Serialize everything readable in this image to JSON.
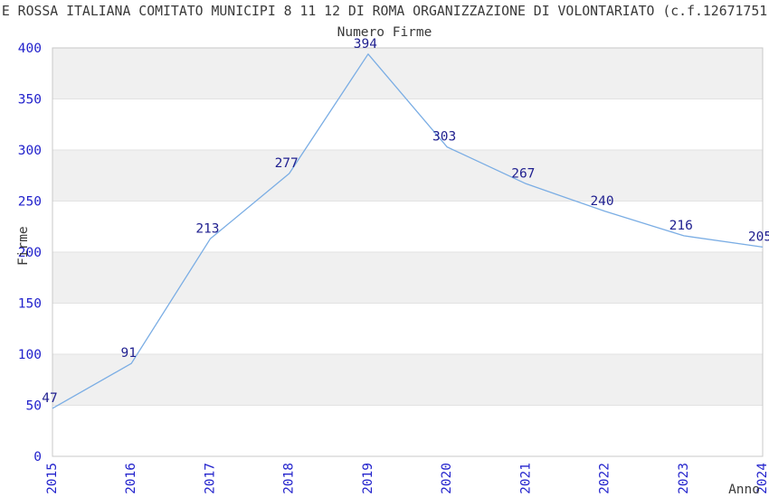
{
  "header": {
    "title": "E ROSSA ITALIANA COMITATO MUNICIPI 8 11 12 DI ROMA ORGANIZZAZIONE DI VOLONTARIATO (c.f.12671751"
  },
  "chart_data": {
    "type": "line",
    "title": "Numero Firme",
    "xlabel": "Anno",
    "ylabel": "Firme",
    "x": [
      2015,
      2016,
      2017,
      2018,
      2019,
      2020,
      2021,
      2022,
      2023,
      2024
    ],
    "series": [
      {
        "name": "Numero Firme",
        "values": [
          47,
          91,
          213,
          277,
          394,
          303,
          267,
          240,
          216,
          205
        ]
      }
    ],
    "data_labels": [
      47,
      91,
      213,
      277,
      394,
      303,
      267,
      240,
      216,
      205
    ],
    "ylim": [
      0,
      400
    ],
    "ytick_step": 50,
    "grid": "horizontal-alternating-bands",
    "legend": "none",
    "colors": {
      "line": "#7aade4",
      "tick_label": "#2222cc",
      "data_label": "#1f1f8f",
      "band_gray": "#f0f0f0",
      "band_white": "#ffffff",
      "grid_line": "#e2e2e2",
      "border": "#c8c8c8",
      "axis_title": "#3a3a3a",
      "title_text": "#3a3a3a"
    }
  }
}
